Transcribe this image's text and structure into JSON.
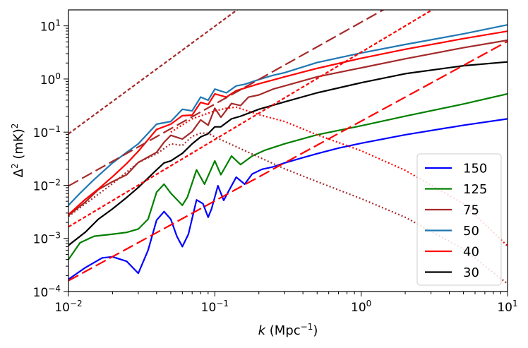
{
  "chart_data": {
    "type": "line",
    "xlabel": {
      "main": "k",
      "unit": "(Mpc",
      "sup": "−1",
      "close": ")"
    },
    "ylabel": {
      "main": "Δ",
      "sup1": "2",
      "unit": " (mK)",
      "sup2": "2"
    },
    "xscale": "log",
    "yscale": "log",
    "xlim": [
      0.01,
      10
    ],
    "ylim": [
      0.0001,
      20
    ],
    "x_ticks": [
      {
        "value": 0.01,
        "base": "10",
        "exp": "−2"
      },
      {
        "value": 0.1,
        "base": "10",
        "exp": "−1"
      },
      {
        "value": 1,
        "base": "10",
        "exp": "0"
      },
      {
        "value": 10,
        "base": "10",
        "exp": "1"
      }
    ],
    "y_ticks": [
      {
        "value": 0.0001,
        "base": "10",
        "exp": "−4"
      },
      {
        "value": 0.001,
        "base": "10",
        "exp": "−3"
      },
      {
        "value": 0.01,
        "base": "10",
        "exp": "−2"
      },
      {
        "value": 0.1,
        "base": "10",
        "exp": "−1"
      },
      {
        "value": 1,
        "base": "10",
        "exp": "0"
      },
      {
        "value": 10,
        "base": "10",
        "exp": "1"
      }
    ],
    "legend_position": "bottom-right",
    "series": [
      {
        "name": "150",
        "color": "#0000ff",
        "style": "solid",
        "points": [
          [
            0.01,
            0.00017
          ],
          [
            0.013,
            0.00028
          ],
          [
            0.017,
            0.00043
          ],
          [
            0.02,
            0.00045
          ],
          [
            0.025,
            0.00037
          ],
          [
            0.03,
            0.00022
          ],
          [
            0.035,
            0.0006
          ],
          [
            0.04,
            0.0022
          ],
          [
            0.045,
            0.0032
          ],
          [
            0.05,
            0.0023
          ],
          [
            0.055,
            0.0011
          ],
          [
            0.06,
            0.0007
          ],
          [
            0.066,
            0.0012
          ],
          [
            0.075,
            0.0053
          ],
          [
            0.083,
            0.0045
          ],
          [
            0.09,
            0.0025
          ],
          [
            0.095,
            0.0036
          ],
          [
            0.105,
            0.0098
          ],
          [
            0.115,
            0.0052
          ],
          [
            0.125,
            0.008
          ],
          [
            0.14,
            0.0142
          ],
          [
            0.16,
            0.0105
          ],
          [
            0.18,
            0.0163
          ],
          [
            0.21,
            0.02
          ],
          [
            0.25,
            0.0222
          ],
          [
            0.3,
            0.0263
          ],
          [
            0.4,
            0.0331
          ],
          [
            0.5,
            0.0393
          ],
          [
            0.7,
            0.05
          ],
          [
            1,
            0.0617
          ],
          [
            2,
            0.0891
          ],
          [
            5,
            0.1349
          ],
          [
            10,
            0.1778
          ]
        ]
      },
      {
        "name": "125",
        "color": "#008000",
        "style": "solid",
        "points": [
          [
            0.01,
            0.0004
          ],
          [
            0.012,
            0.00083
          ],
          [
            0.015,
            0.0011
          ],
          [
            0.02,
            0.0012
          ],
          [
            0.025,
            0.0013
          ],
          [
            0.03,
            0.0015
          ],
          [
            0.035,
            0.0023
          ],
          [
            0.04,
            0.0074
          ],
          [
            0.045,
            0.0105
          ],
          [
            0.05,
            0.0071
          ],
          [
            0.06,
            0.0042
          ],
          [
            0.065,
            0.006
          ],
          [
            0.075,
            0.0195
          ],
          [
            0.085,
            0.0105
          ],
          [
            0.1,
            0.0288
          ],
          [
            0.11,
            0.0158
          ],
          [
            0.13,
            0.0355
          ],
          [
            0.15,
            0.0245
          ],
          [
            0.18,
            0.0355
          ],
          [
            0.22,
            0.0457
          ],
          [
            0.3,
            0.0603
          ],
          [
            0.5,
            0.0891
          ],
          [
            1,
            0.1318
          ],
          [
            2,
            0.2
          ],
          [
            5,
            0.3388
          ],
          [
            10,
            0.5248
          ]
        ]
      },
      {
        "name": "75",
        "color": "#a52a2a",
        "style": "solid",
        "points": [
          [
            0.01,
            0.0027
          ],
          [
            0.013,
            0.0048
          ],
          [
            0.016,
            0.0083
          ],
          [
            0.02,
            0.0117
          ],
          [
            0.025,
            0.0158
          ],
          [
            0.03,
            0.0269
          ],
          [
            0.04,
            0.0417
          ],
          [
            0.045,
            0.0646
          ],
          [
            0.05,
            0.0871
          ],
          [
            0.06,
            0.0741
          ],
          [
            0.07,
            0.1023
          ],
          [
            0.08,
            0.1698
          ],
          [
            0.09,
            0.1349
          ],
          [
            0.1,
            0.2818
          ],
          [
            0.11,
            0.1905
          ],
          [
            0.13,
            0.3467
          ],
          [
            0.15,
            0.3162
          ],
          [
            0.17,
            0.4571
          ],
          [
            0.2,
            0.5012
          ],
          [
            0.25,
            0.6457
          ],
          [
            0.3,
            0.7413
          ],
          [
            0.5,
            1.1
          ],
          [
            1,
            1.6218
          ],
          [
            2,
            2.3988
          ],
          [
            5,
            3.8905
          ],
          [
            10,
            5.3703
          ]
        ]
      },
      {
        "name": "50",
        "color": "#1f77b4",
        "style": "solid",
        "points": [
          [
            0.01,
            0.0042
          ],
          [
            0.012,
            0.0071
          ],
          [
            0.015,
            0.0129
          ],
          [
            0.02,
            0.0263
          ],
          [
            0.025,
            0.0417
          ],
          [
            0.03,
            0.0603
          ],
          [
            0.04,
            0.1413
          ],
          [
            0.05,
            0.1585
          ],
          [
            0.06,
            0.2692
          ],
          [
            0.07,
            0.2512
          ],
          [
            0.08,
            0.4571
          ],
          [
            0.09,
            0.3981
          ],
          [
            0.1,
            0.6457
          ],
          [
            0.12,
            0.5495
          ],
          [
            0.14,
            0.7413
          ],
          [
            0.16,
            0.7943
          ],
          [
            0.2,
            0.9772
          ],
          [
            0.25,
            1.1749
          ],
          [
            0.3,
            1.3183
          ],
          [
            0.5,
            2.0417
          ],
          [
            1,
            3.0903
          ],
          [
            2,
            4.4668
          ],
          [
            5,
            7.0795
          ],
          [
            10,
            10.47
          ]
        ]
      },
      {
        "name": "40",
        "color": "#ff0000",
        "style": "solid",
        "points": [
          [
            0.01,
            0.0028
          ],
          [
            0.013,
            0.0054
          ],
          [
            0.016,
            0.0085
          ],
          [
            0.02,
            0.0145
          ],
          [
            0.025,
            0.0257
          ],
          [
            0.03,
            0.0437
          ],
          [
            0.04,
            0.1122
          ],
          [
            0.05,
            0.1413
          ],
          [
            0.06,
            0.2042
          ],
          [
            0.07,
            0.2089
          ],
          [
            0.08,
            0.3631
          ],
          [
            0.09,
            0.3311
          ],
          [
            0.1,
            0.5248
          ],
          [
            0.12,
            0.4571
          ],
          [
            0.14,
            0.6026
          ],
          [
            0.17,
            0.7079
          ],
          [
            0.2,
            0.8128
          ],
          [
            0.3,
            1.1
          ],
          [
            0.5,
            1.5849
          ],
          [
            1,
            2.4547
          ],
          [
            2,
            3.6308
          ],
          [
            5,
            5.7544
          ],
          [
            10,
            7.9433
          ]
        ]
      },
      {
        "name": "30",
        "color": "#000000",
        "style": "solid",
        "points": [
          [
            0.01,
            0.00074
          ],
          [
            0.013,
            0.0013
          ],
          [
            0.016,
            0.0023
          ],
          [
            0.02,
            0.0036
          ],
          [
            0.025,
            0.0059
          ],
          [
            0.03,
            0.0091
          ],
          [
            0.04,
            0.0195
          ],
          [
            0.045,
            0.0263
          ],
          [
            0.05,
            0.0288
          ],
          [
            0.06,
            0.0398
          ],
          [
            0.07,
            0.0603
          ],
          [
            0.08,
            0.0813
          ],
          [
            0.09,
            0.0933
          ],
          [
            0.1,
            0.1259
          ],
          [
            0.11,
            0.1259
          ],
          [
            0.13,
            0.1778
          ],
          [
            0.15,
            0.1995
          ],
          [
            0.2,
            0.2692
          ],
          [
            0.3,
            0.3715
          ],
          [
            0.5,
            0.5495
          ],
          [
            1,
            0.8511
          ],
          [
            2,
            1.2589
          ],
          [
            5,
            1.7783
          ],
          [
            10,
            2.1
          ]
        ]
      },
      {
        "name": "",
        "color": "#a52a2a",
        "style": "dotted-fine",
        "points": [
          [
            0.01,
            0.0026
          ],
          [
            0.02,
            0.0107
          ],
          [
            0.03,
            0.0269
          ],
          [
            0.04,
            0.0389
          ],
          [
            0.05,
            0.0603
          ],
          [
            0.06,
            0.0562
          ],
          [
            0.07,
            0.0832
          ],
          [
            0.08,
            0.0955
          ],
          [
            0.09,
            0.0955
          ],
          [
            0.1,
            0.0813
          ],
          [
            0.12,
            0.0646
          ],
          [
            0.2,
            0.0339
          ],
          [
            0.3,
            0.0204
          ],
          [
            0.5,
            0.0117
          ],
          [
            1,
            0.0056
          ],
          [
            2,
            0.0025
          ],
          [
            5,
            0.00063
          ],
          [
            10,
            0.00014
          ]
        ]
      },
      {
        "name": "",
        "color": "#ff0000",
        "style": "dotted-fine",
        "points": [
          [
            0.05,
            0.1
          ],
          [
            0.07,
            0.1778
          ],
          [
            0.1,
            0.2512
          ],
          [
            0.12,
            0.2818
          ],
          [
            0.14,
            0.2951
          ],
          [
            0.2,
            0.2138
          ],
          [
            0.3,
            0.1585
          ],
          [
            0.5,
            0.0891
          ],
          [
            1,
            0.0447
          ],
          [
            2,
            0.0191
          ],
          [
            5,
            0.0045
          ],
          [
            10,
            0.00072
          ]
        ]
      },
      {
        "name": "",
        "color": "#a52a2a",
        "style": "long-dash",
        "points": [
          [
            0.01,
            0.0097
          ],
          [
            1.5,
            21.9
          ]
        ]
      },
      {
        "name": "",
        "color": "#a52a2a",
        "style": "short-dash",
        "points": [
          [
            0.01,
            0.093
          ],
          [
            0.2,
            40
          ]
        ]
      },
      {
        "name": "",
        "color": "#ff0000",
        "style": "short-dash",
        "points": [
          [
            0.01,
            0.00165
          ],
          [
            3.2,
            21.6
          ]
        ]
      },
      {
        "name": "",
        "color": "#ff0000",
        "style": "long-dash",
        "points": [
          [
            0.01,
            0.00016
          ],
          [
            10,
            5.11
          ]
        ]
      }
    ]
  }
}
